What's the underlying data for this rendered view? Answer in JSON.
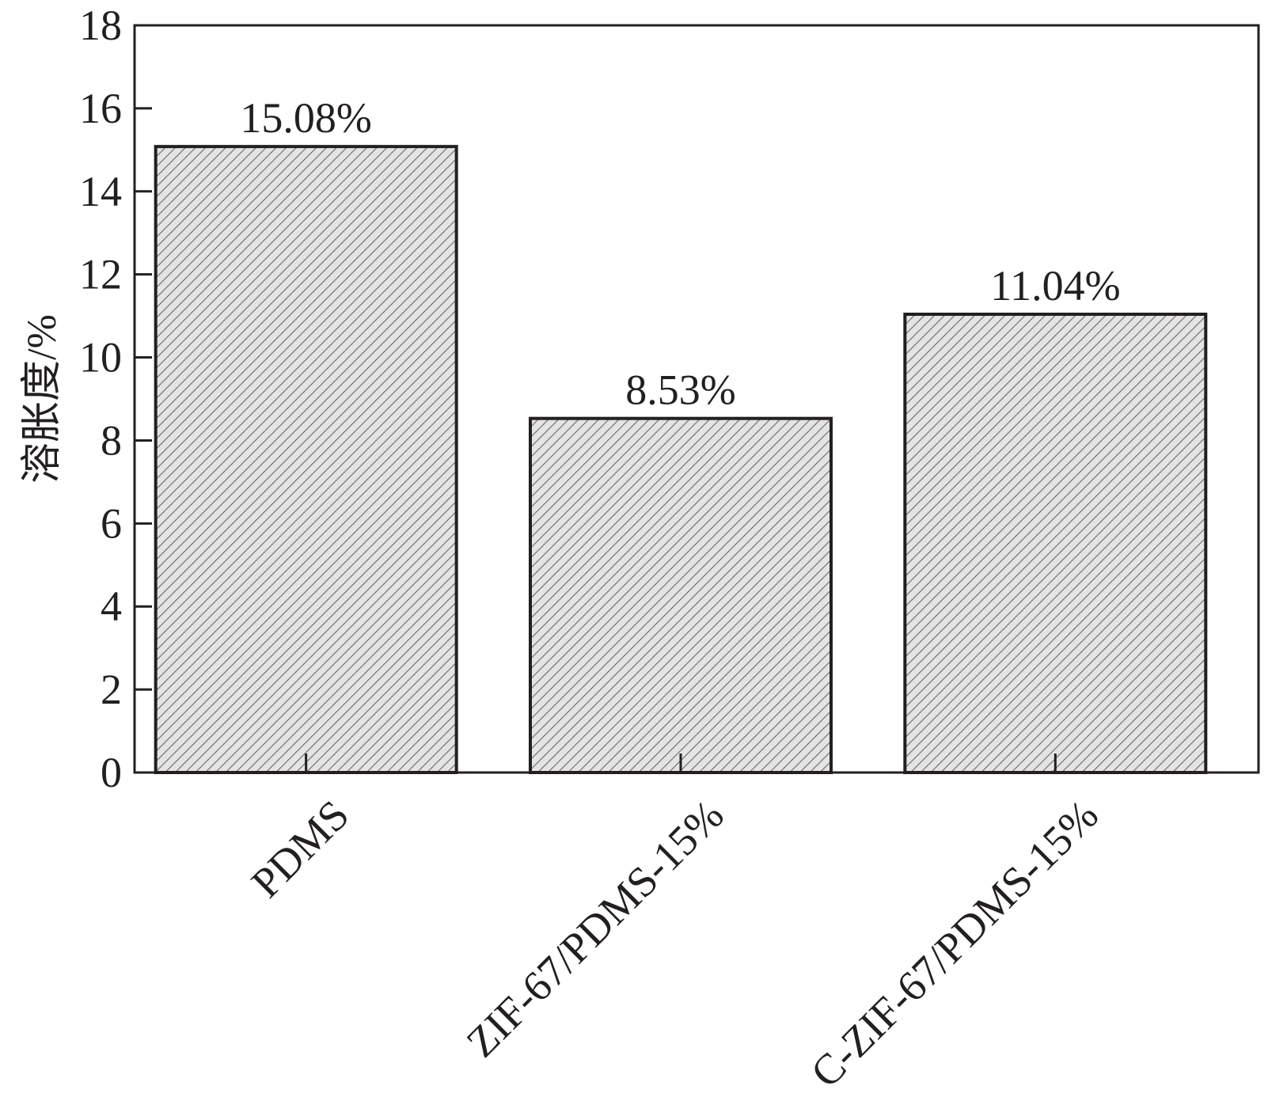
{
  "chart_data": {
    "type": "bar",
    "title": "",
    "xlabel": "",
    "ylabel": "溶胀度/%",
    "categories": [
      "PDMS",
      "ZIF-67/PDMS-15%",
      "C-ZIF-67/PDMS-15%"
    ],
    "values": [
      15.08,
      8.53,
      11.04
    ],
    "value_labels": [
      "15.08%",
      "8.53%",
      "11.04%"
    ],
    "ylim": [
      0,
      18
    ],
    "yticks": [
      0,
      2,
      4,
      6,
      8,
      10,
      12,
      14,
      16,
      18
    ],
    "grid": false,
    "legend": "none",
    "bar_fill": "hatched",
    "colors": {
      "bar_fill": "#d9d9d9",
      "hatch": "#595657",
      "stroke": "#231f20"
    }
  }
}
